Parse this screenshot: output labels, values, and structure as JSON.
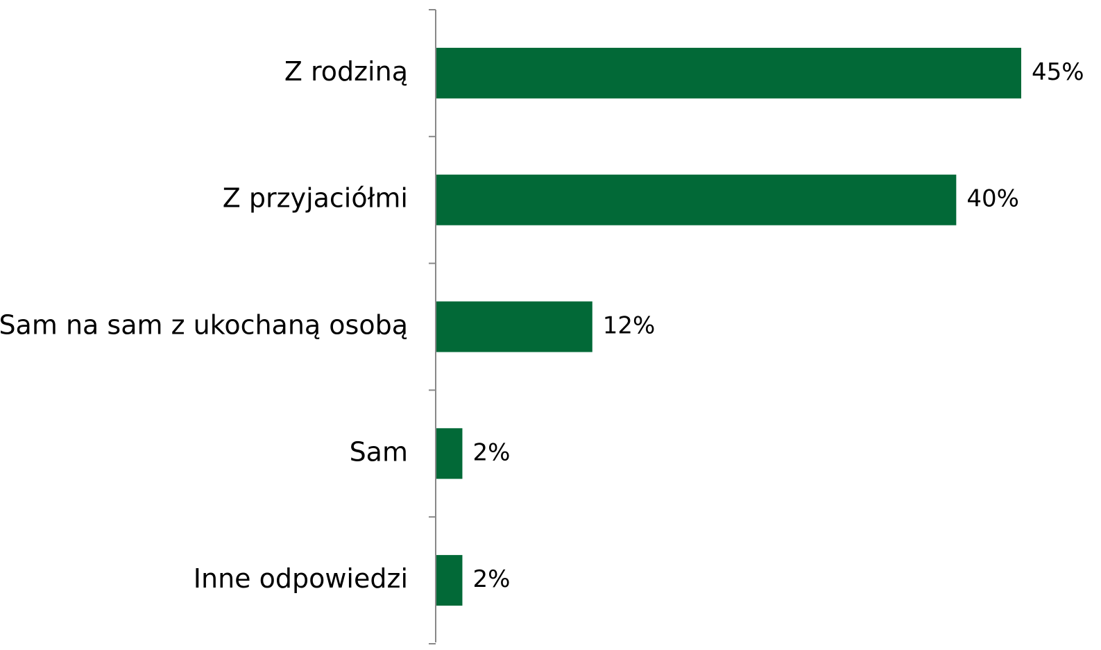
{
  "chart_data": {
    "type": "bar",
    "orientation": "horizontal",
    "categories": [
      "Z rodziną",
      "Z przyjaciółmi",
      "Sam na sam z ukochaną osobą",
      "Sam",
      "Inne odpowiedzi"
    ],
    "values": [
      45,
      40,
      12,
      2,
      2
    ],
    "value_labels": [
      "45%",
      "40%",
      "12%",
      "2%",
      "2%"
    ],
    "color": "#026937"
  }
}
